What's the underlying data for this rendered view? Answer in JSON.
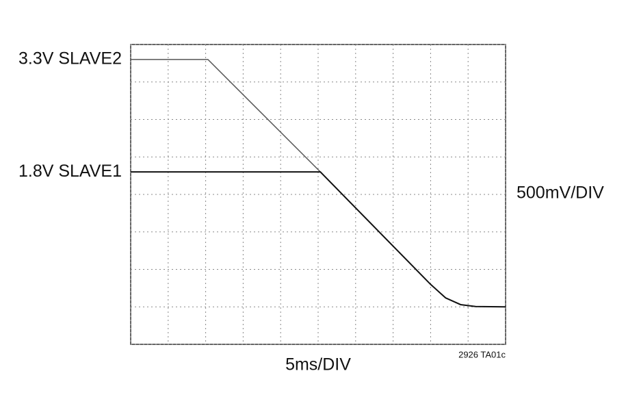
{
  "chart_data": {
    "type": "line",
    "x": [
      0,
      10.3,
      25.3,
      40,
      42,
      44,
      46,
      50
    ],
    "series": [
      {
        "name": "3.3V SLAVE2",
        "color": "#555555",
        "values": [
          3.3,
          3.3,
          1.8,
          0.3,
          0.12,
          0.03,
          0.005,
          0
        ]
      },
      {
        "name": "1.8V SLAVE1",
        "color": "#111111",
        "values": [
          1.8,
          1.8,
          1.8,
          0.3,
          0.12,
          0.03,
          0.005,
          0
        ]
      }
    ],
    "y_scale_label": "500mV/DIV",
    "x_scale_label": "5ms/DIV",
    "figure_id": "2926 TA01c",
    "xlim": [
      0,
      50
    ],
    "ylim": [
      -0.5,
      3.5
    ],
    "xticks": [
      0,
      5,
      10,
      15,
      20,
      25,
      30,
      35,
      40,
      45,
      50
    ],
    "yticks": [
      -0.5,
      0,
      0.5,
      1,
      1.5,
      2,
      2.5,
      3,
      3.5
    ],
    "grid": true
  }
}
